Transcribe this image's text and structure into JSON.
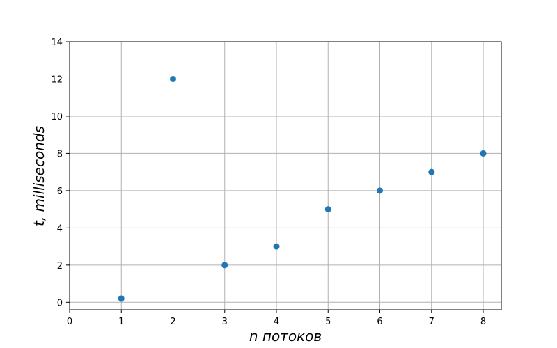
{
  "chart_data": {
    "type": "scatter",
    "x": [
      1,
      2,
      3,
      4,
      5,
      6,
      7,
      8
    ],
    "y": [
      0.2,
      12,
      2,
      3,
      5,
      6,
      7,
      8
    ],
    "xlabel": "n потоков",
    "ylabel": "t, milliseconds",
    "xlim": [
      0,
      8.35
    ],
    "ylim": [
      -0.4,
      14
    ],
    "xticks": [
      "0",
      "1",
      "2",
      "3",
      "4",
      "5",
      "6",
      "7",
      "8"
    ],
    "yticks": [
      "0",
      "2",
      "4",
      "6",
      "8",
      "10",
      "12",
      "14"
    ],
    "grid": true,
    "marker_color": "#1f77b4"
  }
}
